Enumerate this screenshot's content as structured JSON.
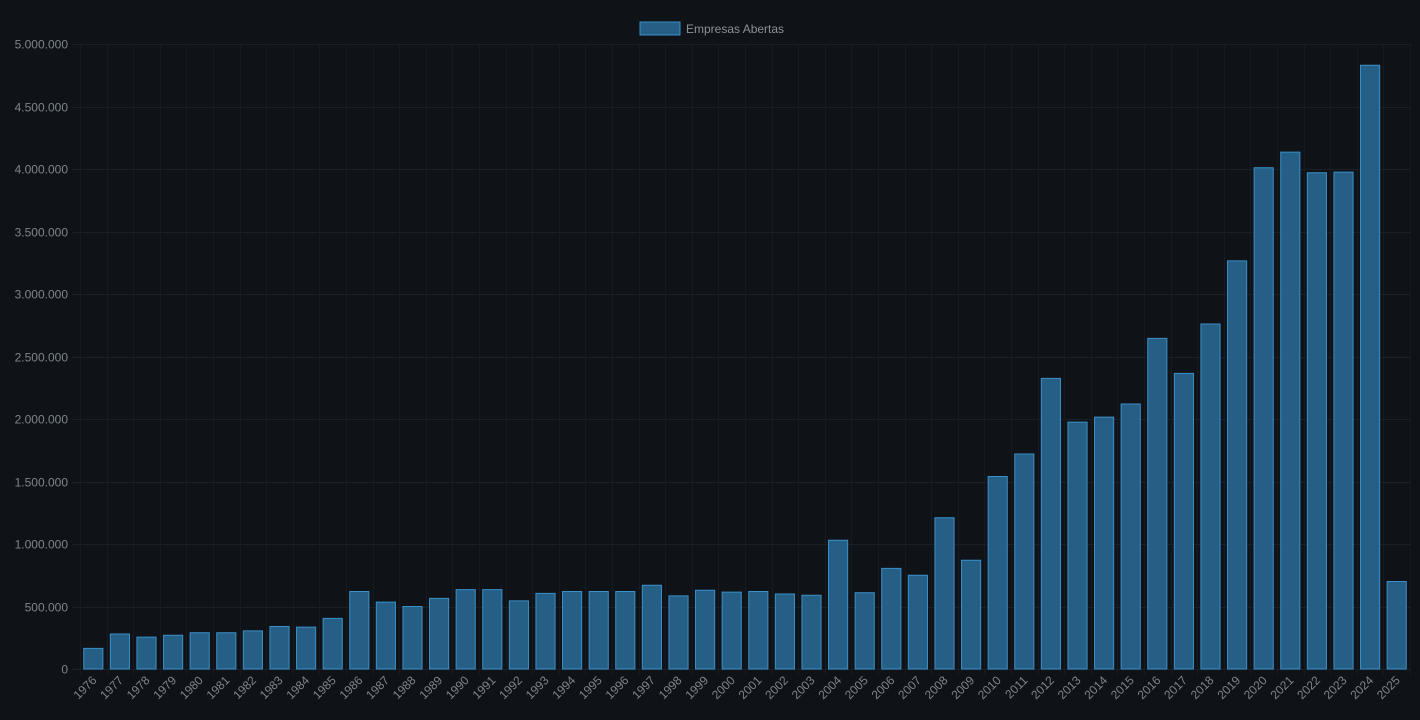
{
  "chart_data": {
    "type": "bar",
    "legend": {
      "position": "top",
      "entries": [
        {
          "label": "Empresas Abertas",
          "color": "#255f86",
          "border": "#3b8fc9"
        }
      ]
    },
    "grid": true,
    "ylim": [
      0,
      5000000
    ],
    "y_ticks": [
      {
        "value": 0,
        "label": "0"
      },
      {
        "value": 500000,
        "label": "500.000"
      },
      {
        "value": 1000000,
        "label": "1.000.000"
      },
      {
        "value": 1500000,
        "label": "1.500.000"
      },
      {
        "value": 2000000,
        "label": "2.000.000"
      },
      {
        "value": 2500000,
        "label": "2.500.000"
      },
      {
        "value": 3000000,
        "label": "3.000.000"
      },
      {
        "value": 3500000,
        "label": "3.500.000"
      },
      {
        "value": 4000000,
        "label": "4.000.000"
      },
      {
        "value": 4500000,
        "label": "4.500.000"
      },
      {
        "value": 5000000,
        "label": "5.000.000"
      }
    ],
    "categories": [
      "1976",
      "1977",
      "1978",
      "1979",
      "1980",
      "1981",
      "1982",
      "1983",
      "1984",
      "1985",
      "1986",
      "1987",
      "1988",
      "1989",
      "1990",
      "1991",
      "1992",
      "1993",
      "1994",
      "1995",
      "1996",
      "1997",
      "1998",
      "1999",
      "2000",
      "2001",
      "2002",
      "2003",
      "2004",
      "2005",
      "2006",
      "2007",
      "2008",
      "2009",
      "2010",
      "2011",
      "2012",
      "2013",
      "2014",
      "2015",
      "2016",
      "2017",
      "2018",
      "2019",
      "2020",
      "2021",
      "2022",
      "2023",
      "2024",
      "2025"
    ],
    "series": [
      {
        "name": "Empresas Abertas",
        "values": [
          165000,
          280000,
          255000,
          270000,
          290000,
          290000,
          305000,
          340000,
          335000,
          405000,
          620000,
          535000,
          500000,
          565000,
          635000,
          635000,
          545000,
          605000,
          620000,
          620000,
          620000,
          670000,
          585000,
          630000,
          615000,
          620000,
          600000,
          590000,
          1030000,
          610000,
          805000,
          750000,
          1210000,
          870000,
          1540000,
          1720000,
          2325000,
          1975000,
          2015000,
          2120000,
          2645000,
          2365000,
          2760000,
          3265000,
          4010000,
          4135000,
          3970000,
          3975000,
          4830000,
          700000
        ]
      }
    ]
  }
}
